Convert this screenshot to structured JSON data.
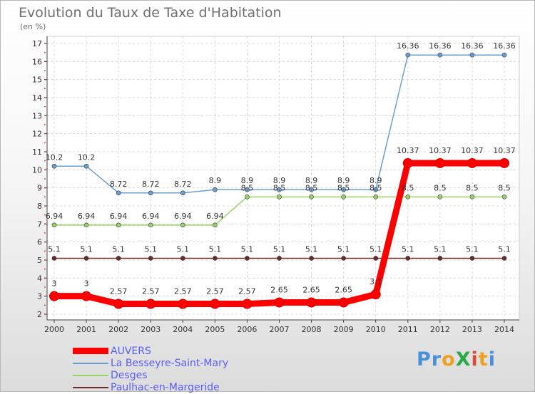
{
  "chart_data": {
    "type": "line",
    "title": "Evolution du Taux de Taxe d'Habitation",
    "subtitle": "(en %)",
    "x": [
      "2000",
      "2001",
      "2002",
      "2003",
      "2004",
      "2005",
      "2006",
      "2007",
      "2008",
      "2009",
      "2010",
      "2011",
      "2012",
      "2013",
      "2014"
    ],
    "ylim": [
      2,
      17
    ],
    "yticks": [
      "2",
      "3",
      "4",
      "5",
      "6",
      "7",
      "8",
      "9",
      "10",
      "11",
      "12",
      "13",
      "14",
      "15",
      "16",
      "17"
    ],
    "grid": true,
    "legend_position": "bottom-left",
    "series": [
      {
        "name": "AUVERS",
        "color": "#ff0000",
        "values": [
          3,
          3,
          2.57,
          2.57,
          2.57,
          2.57,
          2.57,
          2.65,
          2.65,
          2.65,
          3.1,
          10.37,
          10.37,
          10.37,
          10.37
        ],
        "labels": [
          "3",
          "3",
          "2.57",
          "2.57",
          "2.57",
          "2.57",
          "2.57",
          "2.65",
          "2.65",
          "2.65",
          "3.1",
          "10.37",
          "10.37",
          "10.37",
          "10.37"
        ]
      },
      {
        "name": "La Besseyre-Saint-Mary",
        "color": "#6a9fd4",
        "values": [
          10.2,
          10.2,
          8.72,
          8.72,
          8.72,
          8.9,
          8.9,
          8.9,
          8.9,
          8.9,
          8.9,
          16.36,
          16.36,
          16.36,
          16.36
        ],
        "labels": [
          "10.2",
          "10.2",
          "8.72",
          "8.72",
          "8.72",
          "8.9",
          "8.9",
          "8.9",
          "8.9",
          "8.9",
          "8.9",
          "16.36",
          "16.36",
          "16.36",
          "16.36"
        ]
      },
      {
        "name": "Desges",
        "color": "#99d266",
        "values": [
          6.94,
          6.94,
          6.94,
          6.94,
          6.94,
          6.94,
          8.5,
          8.5,
          8.5,
          8.5,
          8.5,
          8.5,
          8.5,
          8.5,
          8.5
        ],
        "labels": [
          "6.94",
          "6.94",
          "6.94",
          "6.94",
          "6.94",
          "6.94",
          "8.5",
          "8.5",
          "8.5",
          "8.5",
          "8.5",
          "8.5",
          "8.5",
          "8.5",
          "8.5"
        ]
      },
      {
        "name": "Paulhac-en-Margeride",
        "color": "#6e2a2a",
        "values": [
          5.1,
          5.1,
          5.1,
          5.1,
          5.1,
          5.1,
          5.1,
          5.1,
          5.1,
          5.1,
          5.1,
          5.1,
          5.1,
          5.1,
          5.1
        ],
        "labels": [
          "5.1",
          "5.1",
          "5.1",
          "5.1",
          "5.1",
          "5.1",
          "5.1",
          "5.1",
          "5.1",
          "5.1",
          "5.1",
          "5.1",
          "5.1",
          "5.1",
          "5.1"
        ]
      }
    ]
  },
  "logo": {
    "text": "ProXiti",
    "letters": [
      "P",
      "r",
      "o",
      "X",
      "i",
      "t",
      "i"
    ],
    "colors": [
      "#4a90d9",
      "#4a90d9",
      "#f0a020",
      "#2ba84a",
      "#d64a3a",
      "#f0a020",
      "#4a90d9"
    ]
  }
}
